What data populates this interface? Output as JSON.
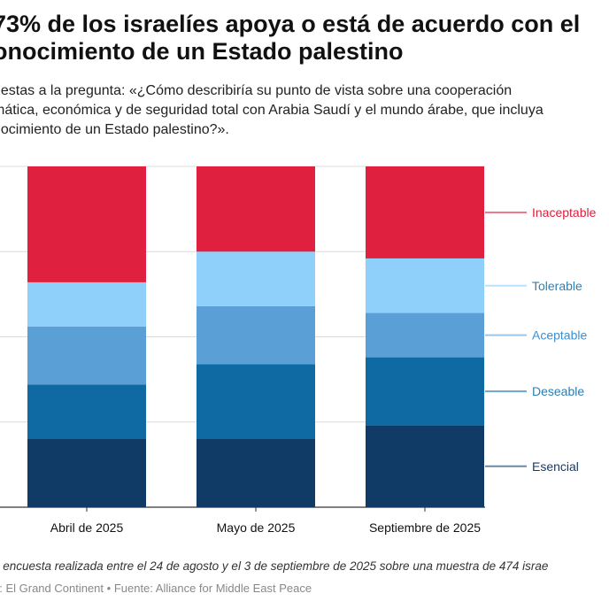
{
  "title": "73% de los israelíes apoya o está de acuerdo con el\nonocimiento de un Estado palestino",
  "subtitle": "uestas a la pregunta: «¿Cómo describiría su punto de vista sobre una cooperación\nmática, económica y de seguridad total con Arabia Saudí y el mundo árabe, que incluya\nnocimiento de un Estado palestino?».",
  "note": "n encuesta realizada entre el 24 de agosto y el 3 de septiembre de 2025 sobre una muestra de 474 israe",
  "source": {
    "credit": "o: El Grand Continent",
    "separator": " • ",
    "origin": "Fuente: Alliance for Middle East Peace"
  },
  "chart_data": {
    "type": "bar",
    "stacked": true,
    "orientation": "vertical",
    "categories": [
      "Abril de 2025",
      "Mayo de 2025",
      "Septiembre de 2025"
    ],
    "ylim": [
      0,
      100
    ],
    "unit": "%",
    "grid": true,
    "legend": "right, inline labels",
    "series": [
      {
        "name": "Esencial",
        "color": "#0f3b66",
        "values": [
          20,
          20,
          24
        ]
      },
      {
        "name": "Deseable",
        "color": "#0f6aa3",
        "values": [
          16,
          22,
          20
        ]
      },
      {
        "name": "Aceptable",
        "color": "#5b9fd7",
        "values": [
          17,
          17,
          13
        ]
      },
      {
        "name": "Tolerable",
        "color": "#8fd0fb",
        "values": [
          13,
          16,
          16
        ]
      },
      {
        "name": "Inaceptable",
        "color": "#e0203f",
        "values": [
          34,
          25,
          27
        ]
      }
    ],
    "label_colors": {
      "Esencial": "#173a63",
      "Deseable": "#2b7fb3",
      "Aceptable": "#3d8fd1",
      "Tolerable": "#2f82b0",
      "Inaceptable": "#d9203d"
    }
  }
}
